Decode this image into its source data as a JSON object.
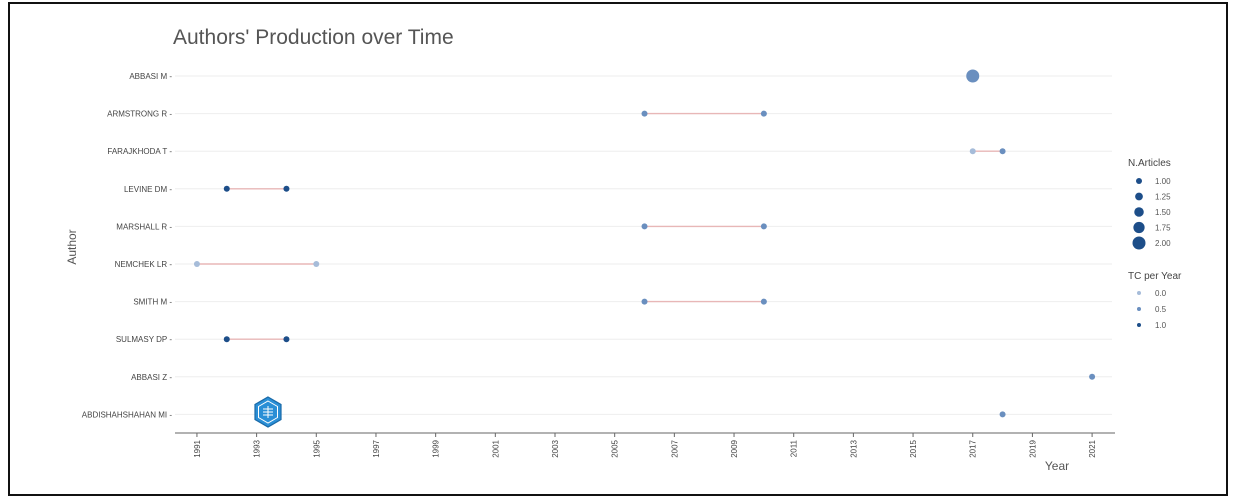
{
  "chart_data": {
    "type": "scatter",
    "title": "Authors' Production over Time",
    "xlabel": "Year",
    "ylabel": "Author",
    "xlim": [
      1990.6,
      2021.6
    ],
    "x_ticks": [
      1991,
      1993,
      1995,
      1997,
      1999,
      2001,
      2003,
      2005,
      2007,
      2009,
      2011,
      2013,
      2015,
      2017,
      2019,
      2021
    ],
    "grid": true,
    "legend_position": "right",
    "colors": {
      "line": "#e8b7b7",
      "dark": "#1d4e89",
      "mid": "#6a8fbf",
      "light": "#a6bcd9",
      "grid": "#eeeeee"
    },
    "authors": [
      {
        "name": "ABBASI M",
        "points": [
          {
            "year": 2017,
            "articles": 2,
            "tc_per_year": 0.5
          }
        ]
      },
      {
        "name": "ARMSTRONG R",
        "points": [
          {
            "year": 2006,
            "articles": 1,
            "tc_per_year": 0.5
          },
          {
            "year": 2010,
            "articles": 1,
            "tc_per_year": 0.6
          }
        ]
      },
      {
        "name": "FARAJKHODA T",
        "points": [
          {
            "year": 2017,
            "articles": 1,
            "tc_per_year": 0.4
          },
          {
            "year": 2018,
            "articles": 1,
            "tc_per_year": 0.5
          }
        ]
      },
      {
        "name": "LEVINE DM",
        "points": [
          {
            "year": 1992,
            "articles": 1,
            "tc_per_year": 1.0
          },
          {
            "year": 1994,
            "articles": 1,
            "tc_per_year": 1.0
          }
        ]
      },
      {
        "name": "MARSHALL R",
        "points": [
          {
            "year": 2006,
            "articles": 1,
            "tc_per_year": 0.5
          },
          {
            "year": 2010,
            "articles": 1,
            "tc_per_year": 0.6
          }
        ]
      },
      {
        "name": "NEMCHEK LR",
        "points": [
          {
            "year": 1991,
            "articles": 1,
            "tc_per_year": 0.3
          },
          {
            "year": 1995,
            "articles": 1,
            "tc_per_year": 0.3
          }
        ]
      },
      {
        "name": "SMITH M",
        "points": [
          {
            "year": 2006,
            "articles": 1,
            "tc_per_year": 0.5
          },
          {
            "year": 2010,
            "articles": 1,
            "tc_per_year": 0.6
          }
        ]
      },
      {
        "name": "SULMASY DP",
        "points": [
          {
            "year": 1992,
            "articles": 1,
            "tc_per_year": 1.0
          },
          {
            "year": 1994,
            "articles": 1,
            "tc_per_year": 1.0
          }
        ]
      },
      {
        "name": "ABBASI Z",
        "points": [
          {
            "year": 2021,
            "articles": 1,
            "tc_per_year": 0.5
          }
        ]
      },
      {
        "name": "ABDISHAHSHAHAN MI",
        "points": [
          {
            "year": 2018,
            "articles": 1,
            "tc_per_year": 0.5
          }
        ]
      }
    ],
    "legend_articles": {
      "title": "N.Articles",
      "entries": [
        "1.00",
        "1.25",
        "1.50",
        "1.75",
        "2.00"
      ]
    },
    "legend_tc": {
      "title": "TC per Year",
      "entries": [
        "0.0",
        "0.5",
        "1.0"
      ]
    }
  },
  "watermark": {
    "icon": "hexagon-logo-icon"
  }
}
